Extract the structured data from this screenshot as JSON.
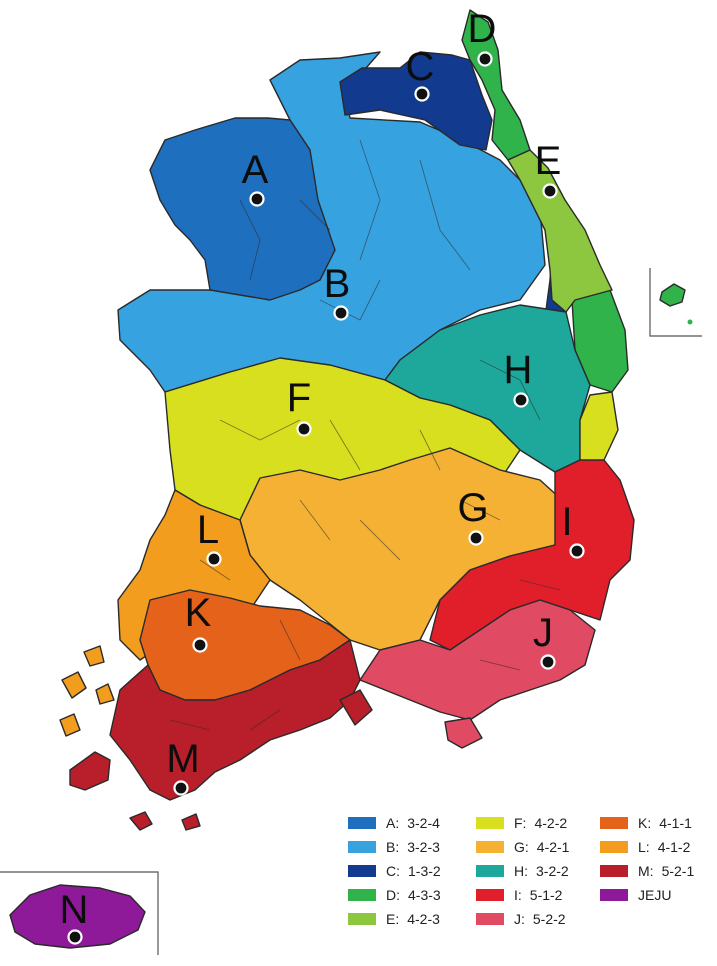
{
  "regions": [
    {
      "id": "A",
      "color": "#1f6fbf"
    },
    {
      "id": "B",
      "color": "#37a2e0"
    },
    {
      "id": "C",
      "color": "#123a8f"
    },
    {
      "id": "D",
      "color": "#2fb34a"
    },
    {
      "id": "E",
      "color": "#8dc63f"
    },
    {
      "id": "F",
      "color": "#d8df1e"
    },
    {
      "id": "G",
      "color": "#f4b134"
    },
    {
      "id": "H",
      "color": "#1ea89b"
    },
    {
      "id": "I",
      "color": "#e11f2b"
    },
    {
      "id": "J",
      "color": "#e04a62"
    },
    {
      "id": "K",
      "color": "#e5621a"
    },
    {
      "id": "L",
      "color": "#f29d1e"
    },
    {
      "id": "M",
      "color": "#b81f2a"
    },
    {
      "id": "N",
      "color": "#8e1a9a"
    }
  ],
  "markers": [
    {
      "letter": "A"
    },
    {
      "letter": "B"
    },
    {
      "letter": "C"
    },
    {
      "letter": "D"
    },
    {
      "letter": "E"
    },
    {
      "letter": "F"
    },
    {
      "letter": "G"
    },
    {
      "letter": "H"
    },
    {
      "letter": "I"
    },
    {
      "letter": "J"
    },
    {
      "letter": "K"
    },
    {
      "letter": "L"
    },
    {
      "letter": "M"
    },
    {
      "letter": "N"
    }
  ],
  "legend": [
    {
      "key": "A:",
      "code": "3-2-4",
      "color": "#1f6fbf"
    },
    {
      "key": "B:",
      "code": "3-2-3",
      "color": "#37a2e0"
    },
    {
      "key": "C:",
      "code": "1-3-2",
      "color": "#123a8f"
    },
    {
      "key": "D:",
      "code": "4-3-3",
      "color": "#2fb34a"
    },
    {
      "key": "E:",
      "code": "4-2-3",
      "color": "#8dc63f"
    },
    {
      "key": "F:",
      "code": "4-2-2",
      "color": "#d8df1e"
    },
    {
      "key": "G:",
      "code": "4-2-1",
      "color": "#f4b134"
    },
    {
      "key": "H:",
      "code": "3-2-2",
      "color": "#1ea89b"
    },
    {
      "key": "I:",
      "code": "5-1-2",
      "color": "#e11f2b"
    },
    {
      "key": "J:",
      "code": "5-2-2",
      "color": "#e04a62"
    },
    {
      "key": "K:",
      "code": "4-1-1",
      "color": "#e5621a"
    },
    {
      "key": "L:",
      "code": "4-1-2",
      "color": "#f29d1e"
    },
    {
      "key": "M:",
      "code": "5-2-1",
      "color": "#b81f2a"
    },
    {
      "key": "",
      "code": "JEJU",
      "color": "#8e1a9a"
    }
  ],
  "inset": {
    "color": "#2fb34a"
  }
}
